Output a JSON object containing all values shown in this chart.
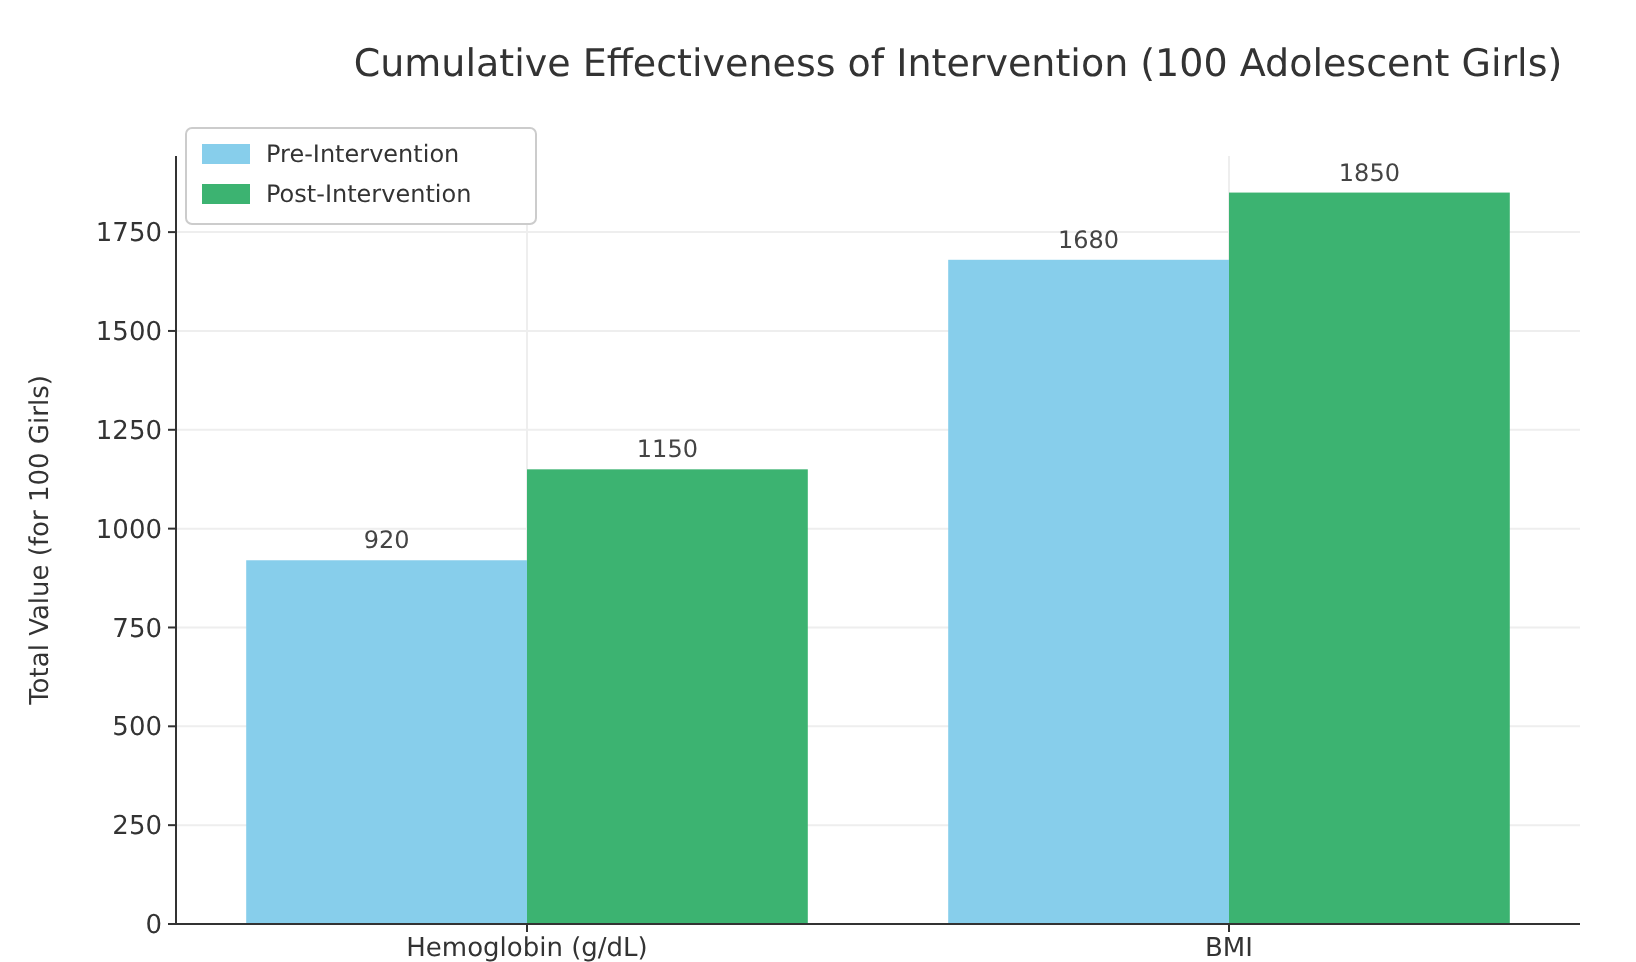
{
  "chart_data": {
    "type": "bar",
    "title": "Cumulative Effectiveness of Intervention (100 Adolescent Girls)",
    "ylabel": "Total Value (for 100 Girls)",
    "categories": [
      "Hemoglobin (g/dL)",
      "BMI"
    ],
    "series": [
      {
        "name": "Pre-Intervention",
        "color": "#87ceeb",
        "values": [
          920,
          1680
        ]
      },
      {
        "name": "Post-Intervention",
        "color": "#3cb371",
        "values": [
          1150,
          1850
        ]
      }
    ],
    "ylim": [
      0,
      1942.5
    ],
    "yticks": [
      0,
      250,
      500,
      750,
      1000,
      1250,
      1500,
      1750
    ],
    "grid": true,
    "legend": "top left",
    "data_labels": true
  }
}
